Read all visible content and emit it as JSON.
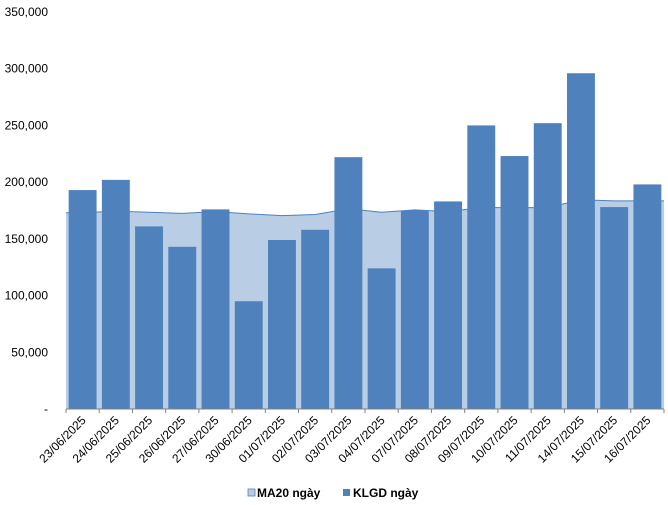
{
  "chart_data": {
    "type": "bar",
    "categories": [
      "23/06/2025",
      "24/06/2025",
      "25/06/2025",
      "26/06/2025",
      "27/06/2025",
      "30/06/2025",
      "01/07/2025",
      "02/07/2025",
      "03/07/2025",
      "04/07/2025",
      "07/07/2025",
      "08/07/2025",
      "09/07/2025",
      "10/07/2025",
      "11/07/2025",
      "14/07/2025",
      "15/07/2025",
      "16/07/2025"
    ],
    "series": [
      {
        "name": "MA20 ngày",
        "type": "area",
        "color": "#b9cde5",
        "stroke": "#4f81bd",
        "values": [
          173000,
          174500,
          173500,
          172500,
          174000,
          172000,
          170500,
          171500,
          176500,
          173500,
          175500,
          174000,
          177500,
          177500,
          177500,
          184500,
          183500,
          183500
        ]
      },
      {
        "name": "KLGD ngày",
        "type": "bar",
        "color": "#4f81bd",
        "values": [
          193000,
          202000,
          161000,
          143000,
          176000,
          95000,
          149000,
          158000,
          222000,
          124000,
          175000,
          183000,
          250000,
          223000,
          252000,
          296000,
          178000,
          198000
        ]
      }
    ],
    "y_ticks": [
      "-",
      "50,000",
      "100,000",
      "150,000",
      "200,000",
      "250,000",
      "300,000",
      "350,000"
    ],
    "ylim": [
      0,
      350000
    ],
    "y_step": 50000,
    "grid": false,
    "legend_position": "bottom"
  }
}
